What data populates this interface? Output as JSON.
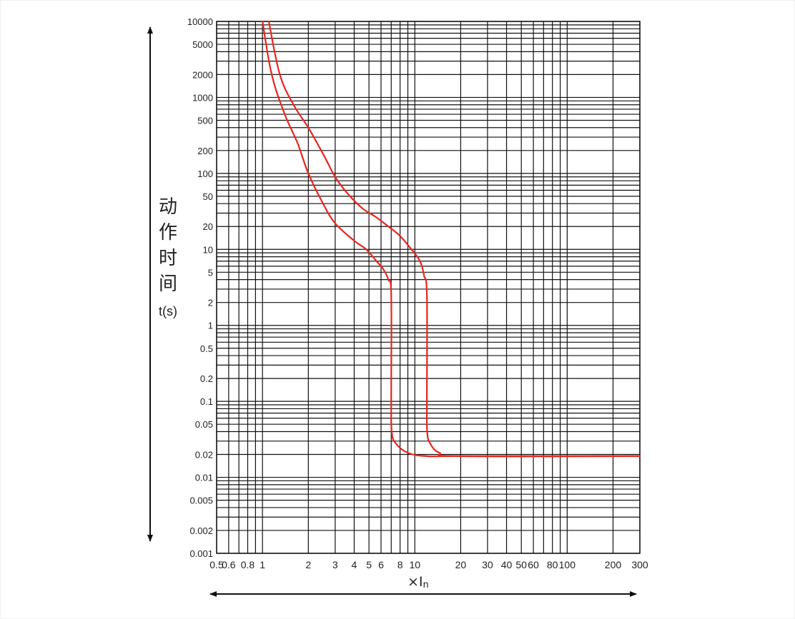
{
  "chart_data": {
    "type": "line",
    "title": "",
    "ylabel_chars": [
      "动",
      "作",
      "时",
      "间"
    ],
    "ylabel_unit": "t(s)",
    "xlabel_prefix": "×",
    "xlabel_main": "I",
    "xlabel_sub": "n",
    "xscale": "log",
    "yscale": "log",
    "xlim": [
      0.5,
      300
    ],
    "ylim": [
      0.001,
      10000
    ],
    "grid": true,
    "x_tick_labels": [
      {
        "v": 0.5,
        "t": "0.5"
      },
      {
        "v": 0.6,
        "t": "0.6"
      },
      {
        "v": 0.8,
        "t": "0.8"
      },
      {
        "v": 1,
        "t": "1"
      },
      {
        "v": 2,
        "t": "2"
      },
      {
        "v": 3,
        "t": "3"
      },
      {
        "v": 4,
        "t": "4"
      },
      {
        "v": 5,
        "t": "5"
      },
      {
        "v": 6,
        "t": "6"
      },
      {
        "v": 8,
        "t": "8"
      },
      {
        "v": 10,
        "t": "10"
      },
      {
        "v": 20,
        "t": "20"
      },
      {
        "v": 30,
        "t": "30"
      },
      {
        "v": 40,
        "t": "40"
      },
      {
        "v": 50,
        "t": "50"
      },
      {
        "v": 60,
        "t": "60"
      },
      {
        "v": 80,
        "t": "80"
      },
      {
        "v": 100,
        "t": "100"
      },
      {
        "v": 200,
        "t": "200"
      },
      {
        "v": 300,
        "t": "300"
      }
    ],
    "y_tick_labels": [
      {
        "v": 10000,
        "t": "10000"
      },
      {
        "v": 5000,
        "t": "5000"
      },
      {
        "v": 2000,
        "t": "2000"
      },
      {
        "v": 1000,
        "t": "1000"
      },
      {
        "v": 500,
        "t": "500"
      },
      {
        "v": 200,
        "t": "200"
      },
      {
        "v": 100,
        "t": "100"
      },
      {
        "v": 50,
        "t": "50"
      },
      {
        "v": 20,
        "t": "20"
      },
      {
        "v": 10,
        "t": "10"
      },
      {
        "v": 5,
        "t": "5"
      },
      {
        "v": 2,
        "t": "2"
      },
      {
        "v": 1,
        "t": "1"
      },
      {
        "v": 0.5,
        "t": "0.5"
      },
      {
        "v": 0.2,
        "t": "0.2"
      },
      {
        "v": 0.1,
        "t": "0.1"
      },
      {
        "v": 0.05,
        "t": "0.05"
      },
      {
        "v": 0.02,
        "t": "0.02"
      },
      {
        "v": 0.01,
        "t": "0.01"
      },
      {
        "v": 0.005,
        "t": "0.005"
      },
      {
        "v": 0.002,
        "t": "0.002"
      },
      {
        "v": 0.001,
        "t": "0.001"
      }
    ],
    "series": [
      {
        "color": "#e8251f",
        "points": [
          [
            1.0,
            10000
          ],
          [
            1.15,
            2000
          ],
          [
            1.4,
            600
          ],
          [
            1.7,
            250
          ],
          [
            2.0,
            100
          ],
          [
            2.5,
            40
          ],
          [
            3.0,
            22
          ],
          [
            4.0,
            13
          ],
          [
            4.8,
            10
          ],
          [
            5.6,
            7
          ],
          [
            6.2,
            5.5
          ],
          [
            6.7,
            4
          ],
          [
            7.0,
            2.5
          ],
          [
            7.0,
            0.1
          ],
          [
            7.05,
            0.04
          ],
          [
            7.5,
            0.028
          ],
          [
            9.0,
            0.021
          ],
          [
            12,
            0.019
          ],
          [
            20,
            0.019
          ],
          [
            300,
            0.019
          ]
        ]
      },
      {
        "color": "#e8251f",
        "points": [
          [
            1.1,
            10000
          ],
          [
            1.3,
            2000
          ],
          [
            1.6,
            800
          ],
          [
            2.0,
            400
          ],
          [
            2.5,
            180
          ],
          [
            3.0,
            90
          ],
          [
            3.6,
            55
          ],
          [
            4.5,
            35
          ],
          [
            5.5,
            27
          ],
          [
            6.5,
            21
          ],
          [
            8.0,
            15
          ],
          [
            9.5,
            10
          ],
          [
            10.8,
            7
          ],
          [
            11.5,
            4.5
          ],
          [
            12.0,
            2.5
          ],
          [
            12.0,
            0.1
          ],
          [
            12.05,
            0.04
          ],
          [
            12.6,
            0.028
          ],
          [
            14.5,
            0.021
          ],
          [
            20,
            0.019
          ],
          [
            300,
            0.019
          ]
        ]
      }
    ]
  }
}
